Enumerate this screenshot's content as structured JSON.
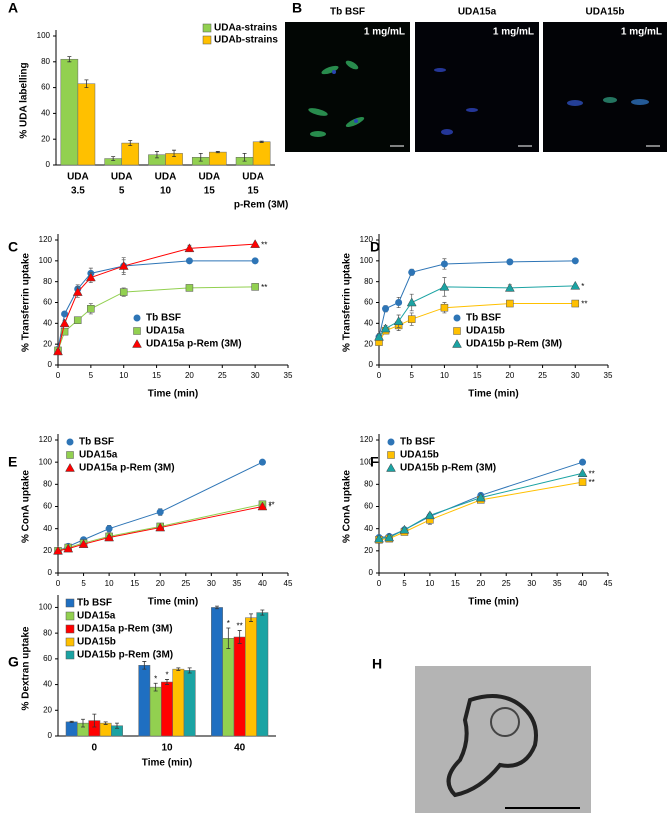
{
  "chart_data": [
    {
      "panel": "A",
      "type": "bar",
      "ylabel": "% UDA labelling",
      "categories": [
        [
          "UDA",
          "3.5"
        ],
        [
          "UDA",
          "5"
        ],
        [
          "UDA",
          "10"
        ],
        [
          "UDA",
          "15"
        ],
        [
          "UDA",
          "15",
          "p-Rem (3M)"
        ]
      ],
      "series": [
        {
          "name": "UDAa-strains",
          "color": "#92d050",
          "values": [
            82,
            5,
            8,
            6,
            6
          ],
          "errors": [
            2,
            1.5,
            2.5,
            3,
            3
          ]
        },
        {
          "name": "UDAb-strains",
          "color": "#ffc000",
          "values": [
            63,
            17,
            9,
            10,
            18
          ],
          "errors": [
            3,
            2,
            2.5,
            0.5,
            0.5
          ]
        }
      ],
      "ylim": [
        0,
        100
      ],
      "yticks": [
        0,
        20,
        40,
        60,
        80,
        100
      ],
      "legend": "upper right",
      "grid": false
    },
    {
      "panel": "C",
      "type": "line",
      "xlabel": "Time (min)",
      "ylabel": "% Transferrin uptake",
      "x": [
        0,
        1,
        3,
        5,
        10,
        20,
        30
      ],
      "series": [
        {
          "name": "Tb BSF",
          "color": "#2e75b6",
          "marker": "circle",
          "values": [
            15,
            49,
            73,
            88,
            95,
            100,
            100
          ],
          "errors": [
            2,
            2,
            4,
            5,
            6,
            2,
            1
          ]
        },
        {
          "name": "UDA15a",
          "color": "#92d050",
          "marker": "square",
          "values": [
            14,
            32,
            43,
            54,
            70,
            74,
            75
          ],
          "errors": [
            2,
            2,
            3,
            5,
            4,
            2,
            1
          ],
          "annotation": "**"
        },
        {
          "name": "UDA15a p-Rem (3M)",
          "color": "#ff0000",
          "marker": "triangle",
          "values": [
            13,
            40,
            70,
            84,
            95,
            112,
            116
          ],
          "errors": [
            2,
            3,
            5,
            5,
            8,
            3,
            1
          ],
          "annotation": "**"
        }
      ],
      "xlim": [
        0,
        35
      ],
      "xticks": [
        0,
        5,
        10,
        15,
        20,
        25,
        30,
        35
      ],
      "ylim": [
        0,
        120
      ],
      "yticks": [
        0,
        20,
        40,
        60,
        80,
        100,
        120
      ],
      "legend": "lower right",
      "grid": false
    },
    {
      "panel": "D",
      "type": "line",
      "xlabel": "Time (min)",
      "ylabel": "% Transferrin uptake",
      "x": [
        0,
        1,
        3,
        5,
        10,
        20,
        30
      ],
      "series": [
        {
          "name": "Tb BSF",
          "color": "#2e75b6",
          "marker": "circle",
          "values": [
            27,
            54,
            60,
            89,
            97,
            99,
            100
          ],
          "errors": [
            3,
            3,
            5,
            3,
            5,
            2,
            1
          ]
        },
        {
          "name": "UDA15b",
          "color": "#ffc000",
          "marker": "square",
          "values": [
            22,
            33,
            38,
            44,
            55,
            59,
            59
          ],
          "errors": [
            3,
            3,
            5,
            6,
            5,
            3,
            2
          ],
          "annotation": "**"
        },
        {
          "name": "UDA15b p-Rem (3M)",
          "color": "#1ba3a3",
          "marker": "triangle",
          "values": [
            27,
            35,
            42,
            60,
            75,
            74,
            76
          ],
          "errors": [
            3,
            3,
            6,
            8,
            9,
            3,
            1
          ],
          "annotation": "*"
        }
      ],
      "xlim": [
        0,
        35
      ],
      "xticks": [
        0,
        5,
        10,
        15,
        20,
        25,
        30,
        35
      ],
      "ylim": [
        0,
        120
      ],
      "yticks": [
        0,
        20,
        40,
        60,
        80,
        100,
        120
      ],
      "legend": "lower right",
      "grid": false
    },
    {
      "panel": "E",
      "type": "line",
      "xlabel": "Time (min)",
      "ylabel": "% ConA uptake",
      "x": [
        0,
        2,
        5,
        10,
        20,
        40
      ],
      "series": [
        {
          "name": "Tb BSF",
          "color": "#2e75b6",
          "marker": "circle",
          "values": [
            20,
            24,
            30,
            40,
            55,
            100
          ],
          "errors": [
            1,
            1,
            2,
            3,
            3,
            1
          ]
        },
        {
          "name": "UDA15a",
          "color": "#92d050",
          "marker": "square",
          "values": [
            20,
            23,
            27,
            33,
            42,
            62
          ],
          "errors": [
            1,
            1,
            1,
            2,
            1,
            2
          ],
          "annotation": "**"
        },
        {
          "name": "UDA15a p-Rem (3M)",
          "color": "#ff0000",
          "marker": "triangle",
          "values": [
            20,
            22,
            26,
            32,
            41,
            60
          ],
          "errors": [
            1,
            1,
            1,
            2,
            1,
            2
          ],
          "annotation": "*"
        }
      ],
      "xlim": [
        0,
        45
      ],
      "xticks": [
        0,
        5,
        10,
        15,
        20,
        25,
        30,
        35,
        40,
        45
      ],
      "ylim": [
        0,
        120
      ],
      "yticks": [
        0,
        20,
        40,
        60,
        80,
        100,
        120
      ],
      "legend": "upper left",
      "grid": false
    },
    {
      "panel": "F",
      "type": "line",
      "xlabel": "Time (min)",
      "ylabel": "% ConA uptake",
      "x": [
        0,
        2,
        5,
        10,
        20,
        40
      ],
      "series": [
        {
          "name": "Tb BSF",
          "color": "#2e75b6",
          "marker": "circle",
          "values": [
            32,
            33,
            39,
            51,
            70,
            100
          ],
          "errors": [
            1,
            1,
            1,
            2,
            1,
            1
          ]
        },
        {
          "name": "UDA15b",
          "color": "#ffc000",
          "marker": "square",
          "values": [
            30,
            31,
            37,
            48,
            66,
            82
          ],
          "errors": [
            1,
            1,
            1,
            4,
            2,
            2
          ],
          "annotation": "**"
        },
        {
          "name": "UDA15b p-Rem (3M)",
          "color": "#1ba3a3",
          "marker": "triangle",
          "values": [
            31,
            32,
            39,
            52,
            68,
            90
          ],
          "errors": [
            1,
            1,
            1,
            2,
            1,
            1
          ],
          "annotation": "**"
        }
      ],
      "xlim": [
        0,
        45
      ],
      "xticks": [
        0,
        5,
        10,
        15,
        20,
        25,
        30,
        35,
        40,
        45
      ],
      "ylim": [
        0,
        120
      ],
      "yticks": [
        0,
        20,
        40,
        60,
        80,
        100,
        120
      ],
      "legend": "upper left",
      "grid": false
    },
    {
      "panel": "G",
      "type": "bar",
      "xlabel": "Time (min)",
      "ylabel": "% Dextran uptake",
      "categories": [
        [
          "0"
        ],
        [
          "10"
        ],
        [
          "40"
        ]
      ],
      "series": [
        {
          "name": "Tb BSF",
          "color": "#1f6fc1",
          "values": [
            11,
            55,
            100
          ],
          "errors": [
            0.5,
            3,
            1
          ]
        },
        {
          "name": "UDA15a",
          "color": "#92d050",
          "values": [
            10,
            38,
            76
          ],
          "errors": [
            3,
            3,
            8
          ],
          "annotations": [
            null,
            "*",
            "*"
          ]
        },
        {
          "name": "UDA15a p-Rem (3M)",
          "color": "#ff0000",
          "values": [
            12,
            42,
            77
          ],
          "errors": [
            5,
            2,
            5
          ],
          "annotations": [
            null,
            "*",
            "**"
          ]
        },
        {
          "name": "UDA15b",
          "color": "#ffc000",
          "values": [
            10,
            52,
            92
          ],
          "errors": [
            1,
            1,
            3
          ]
        },
        {
          "name": "UDA15b p-Rem (3M)",
          "color": "#1ba3a3",
          "values": [
            8,
            51,
            96
          ],
          "errors": [
            2,
            2,
            2
          ]
        }
      ],
      "ylim": [
        0,
        105
      ],
      "yticks": [
        0,
        20,
        40,
        60,
        80,
        100
      ],
      "legend": "upper left",
      "grid": false
    }
  ],
  "images": {
    "B": {
      "panel": "B",
      "frames": [
        {
          "title": "Tb BSF",
          "label": "1 mg/mL"
        },
        {
          "title": "UDA15a",
          "label": "1 mg/mL"
        },
        {
          "title": "UDA15b",
          "label": "1 mg/mL"
        }
      ]
    },
    "H": {
      "panel": "H"
    }
  }
}
